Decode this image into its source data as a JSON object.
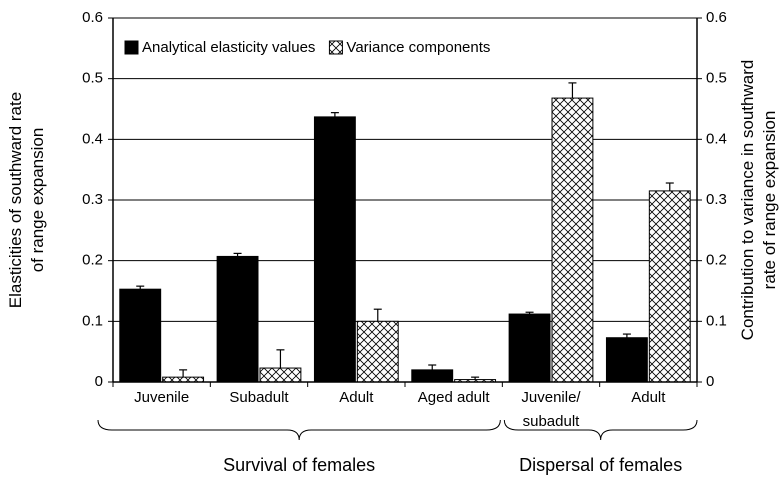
{
  "chart_data": {
    "type": "bar",
    "ylabel": [
      "Elasticities of southward rate",
      "of range expansion"
    ],
    "y2label": [
      "Contribution to variance in southward",
      "rate of range expansion"
    ],
    "categories": [
      "Juvenile",
      "Subadult",
      "Adult",
      "Aged adult",
      "Juvenile/ subadult",
      "Adult"
    ],
    "group_labels": [
      "Survival of females",
      "Dispersal of females"
    ],
    "series": [
      {
        "name": "Analytical elasticity values",
        "color": "#000000",
        "values": [
          0.153,
          0.207,
          0.437,
          0.02,
          0.112,
          0.073
        ],
        "errors": [
          0.005,
          0.005,
          0.007,
          0.008,
          0.003,
          0.006
        ]
      },
      {
        "name": "Variance components",
        "color": "crosshatch",
        "axis": "y2",
        "values": [
          0.008,
          0.023,
          0.1,
          0.004,
          0.468,
          0.315
        ],
        "errors": [
          0.012,
          0.03,
          0.02,
          0.004,
          0.025,
          0.013
        ]
      }
    ],
    "ylim": [
      0,
      0.6
    ],
    "yticks": [
      0,
      0.1,
      0.2,
      0.3,
      0.4,
      0.5,
      0.6
    ],
    "y2lim": [
      0,
      0.6
    ],
    "y2ticks": [
      0,
      0.1,
      0.2,
      0.3,
      0.4,
      0.5,
      0.6
    ],
    "grid": true,
    "legend": "top-left"
  }
}
